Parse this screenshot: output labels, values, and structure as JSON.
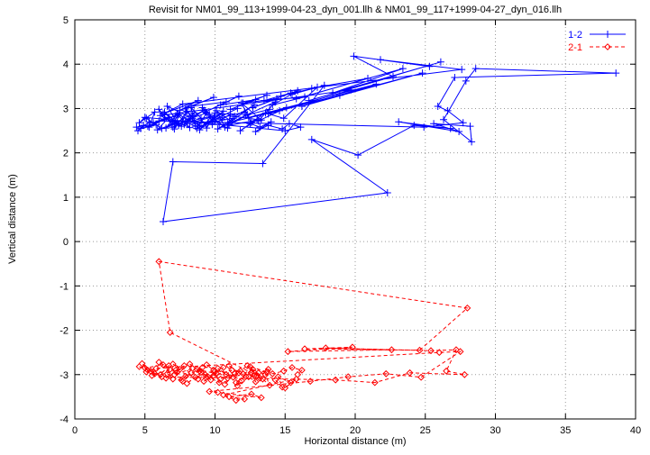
{
  "colors": {
    "background": "#ffffff",
    "axis": "#000000",
    "grid": "#9a9a9a",
    "series1": "#0000ff",
    "series2": "#ff0000"
  },
  "chart_data": {
    "type": "scatter",
    "title": "Revisit for NM01_99_113+1999-04-23_dyn_001.llh & NM01_99_117+1999-04-27_dyn_016.llh",
    "xlabel": "Horizontal distance (m)",
    "ylabel": "Vertical distance (m)",
    "xlim": [
      0,
      40
    ],
    "ylim": [
      -4,
      5
    ],
    "x_ticks": [
      0,
      5,
      10,
      15,
      20,
      25,
      30,
      35,
      40
    ],
    "y_ticks": [
      -4,
      -3,
      -2,
      -1,
      0,
      1,
      2,
      3,
      4,
      5
    ],
    "grid": true,
    "legend_position": "top-right",
    "series": [
      {
        "name": "1-2",
        "color": "#0000ff",
        "marker": "plus",
        "line_style": "solid",
        "points": [
          [
            4.4,
            2.58
          ],
          [
            4.9,
            2.62
          ],
          [
            4.5,
            2.5
          ],
          [
            5.3,
            2.7
          ],
          [
            4.7,
            2.55
          ],
          [
            5.8,
            2.63
          ],
          [
            5.1,
            2.78
          ],
          [
            6.2,
            2.55
          ],
          [
            5.6,
            2.68
          ],
          [
            6.7,
            2.8
          ],
          [
            5.9,
            2.52
          ],
          [
            7.1,
            2.66
          ],
          [
            6.4,
            2.92
          ],
          [
            7.6,
            2.6
          ],
          [
            6.9,
            2.74
          ],
          [
            8.2,
            2.57
          ],
          [
            7.3,
            2.88
          ],
          [
            8.6,
            2.66
          ],
          [
            7.9,
            2.99
          ],
          [
            8.9,
            2.61
          ],
          [
            8.1,
            2.76
          ],
          [
            9.4,
            2.9
          ],
          [
            8.7,
            2.55
          ],
          [
            9.8,
            2.72
          ],
          [
            9.1,
            3.02
          ],
          [
            10.3,
            2.64
          ],
          [
            9.6,
            2.86
          ],
          [
            10.7,
            2.58
          ],
          [
            10.1,
            2.95
          ],
          [
            11.2,
            2.7
          ],
          [
            14.6,
            2.95
          ],
          [
            18.9,
            3.3
          ],
          [
            12.4,
            2.8
          ],
          [
            21.5,
            3.55
          ],
          [
            16.2,
            3.05
          ],
          [
            24.8,
            3.8
          ],
          [
            13.8,
            2.88
          ],
          [
            19.7,
            3.42
          ],
          [
            6.1,
            2.84
          ],
          [
            7.4,
            2.62
          ],
          [
            6.6,
            3.05
          ],
          [
            8.4,
            2.78
          ],
          [
            7.0,
            2.58
          ],
          [
            9.2,
            2.96
          ],
          [
            8.0,
            2.7
          ],
          [
            10.5,
            2.88
          ],
          [
            9.0,
            2.6
          ],
          [
            11.6,
            3.0
          ],
          [
            10.0,
            2.76
          ],
          [
            12.1,
            2.92
          ],
          [
            10.9,
            2.66
          ],
          [
            12.8,
            3.08
          ],
          [
            11.4,
            2.82
          ],
          [
            13.3,
            2.74
          ],
          [
            11.9,
            3.12
          ],
          [
            12.6,
            2.68
          ],
          [
            13.9,
            2.98
          ],
          [
            12.2,
            2.85
          ],
          [
            14.3,
            3.15
          ],
          [
            13.1,
            2.72
          ],
          [
            15.1,
            3.02
          ],
          [
            13.6,
            2.9
          ],
          [
            14.9,
            2.78
          ],
          [
            17.3,
            3.48
          ],
          [
            20.9,
            3.68
          ],
          [
            15.8,
            3.22
          ],
          [
            23.4,
            3.9
          ],
          [
            18.4,
            3.35
          ],
          [
            26.1,
            4.05
          ],
          [
            16.7,
            3.18
          ],
          [
            22.7,
            3.72
          ],
          [
            19.9,
            4.18
          ],
          [
            25.3,
            3.95
          ],
          [
            21.8,
            4.1
          ],
          [
            27.6,
            3.88
          ],
          [
            7.7,
            3.1
          ],
          [
            6.3,
            2.88
          ],
          [
            8.8,
            3.18
          ],
          [
            7.5,
            2.96
          ],
          [
            9.9,
            3.25
          ],
          [
            8.3,
            3.05
          ],
          [
            10.8,
            3.15
          ],
          [
            9.3,
            2.92
          ],
          [
            11.7,
            3.28
          ],
          [
            10.4,
            3.08
          ],
          [
            12.9,
            3.2
          ],
          [
            11.1,
            2.98
          ],
          [
            13.7,
            3.3
          ],
          [
            12.0,
            3.12
          ],
          [
            14.4,
            3.22
          ],
          [
            12.7,
            3.02
          ],
          [
            15.4,
            3.35
          ],
          [
            13.5,
            3.18
          ],
          [
            16.4,
            3.26
          ],
          [
            14.1,
            3.08
          ],
          [
            15.9,
            3.4
          ],
          [
            14.7,
            3.28
          ],
          [
            16.9,
            3.45
          ],
          [
            15.5,
            3.32
          ],
          [
            17.8,
            3.52
          ],
          [
            13.4,
            1.76
          ],
          [
            7.0,
            1.8
          ],
          [
            6.3,
            0.45
          ],
          [
            22.3,
            1.1
          ],
          [
            16.9,
            2.3
          ],
          [
            20.2,
            1.95
          ],
          [
            24.2,
            2.62
          ],
          [
            26.8,
            2.55
          ],
          [
            23.1,
            2.7
          ],
          [
            27.4,
            2.48
          ],
          [
            25.6,
            2.66
          ],
          [
            28.2,
            2.6
          ],
          [
            28.3,
            2.25
          ],
          [
            26.3,
            2.75
          ],
          [
            27.9,
            3.62
          ],
          [
            28.6,
            3.9
          ],
          [
            38.6,
            3.8
          ],
          [
            27.1,
            3.7
          ],
          [
            25.9,
            3.05
          ],
          [
            26.6,
            2.95
          ],
          [
            27.7,
            2.68
          ],
          [
            24.9,
            2.58
          ],
          [
            6.0,
            2.72
          ],
          [
            5.2,
            2.6
          ],
          [
            7.2,
            2.84
          ],
          [
            6.5,
            2.56
          ],
          [
            8.5,
            2.9
          ],
          [
            7.8,
            2.64
          ],
          [
            9.7,
            2.8
          ],
          [
            8.9,
            2.52
          ],
          [
            10.6,
            2.94
          ],
          [
            9.5,
            2.68
          ],
          [
            11.3,
            2.78
          ],
          [
            10.2,
            2.54
          ],
          [
            12.3,
            2.86
          ],
          [
            11.0,
            2.62
          ],
          [
            13.0,
            2.74
          ],
          [
            11.8,
            2.5
          ],
          [
            12.5,
            2.66
          ],
          [
            13.2,
            2.58
          ],
          [
            14.0,
            2.7
          ],
          [
            12.9,
            2.48
          ],
          [
            13.8,
            2.62
          ],
          [
            14.8,
            2.54
          ],
          [
            15.3,
            2.66
          ],
          [
            16.1,
            2.58
          ],
          [
            15.0,
            2.5
          ],
          [
            5.0,
            2.8
          ],
          [
            4.6,
            2.68
          ],
          [
            5.7,
            2.92
          ],
          [
            5.3,
            2.58
          ],
          [
            6.4,
            2.76
          ],
          [
            6.0,
            2.98
          ],
          [
            6.9,
            2.64
          ],
          [
            7.4,
            2.86
          ],
          [
            7.1,
            2.54
          ],
          [
            8.0,
            2.94
          ],
          [
            7.7,
            2.72
          ],
          [
            8.6,
            2.6
          ],
          [
            8.3,
            3.02
          ],
          [
            9.0,
            2.78
          ],
          [
            9.4,
            2.56
          ],
          [
            10.0,
            2.9
          ],
          [
            9.8,
            2.64
          ],
          [
            10.5,
            2.76
          ],
          [
            11.1,
            2.88
          ],
          [
            10.9,
            2.56
          ]
        ]
      },
      {
        "name": "2-1",
        "color": "#ff0000",
        "marker": "diamond",
        "line_style": "dashed",
        "points": [
          [
            4.6,
            -2.82
          ],
          [
            5.2,
            -2.9
          ],
          [
            4.8,
            -2.75
          ],
          [
            5.7,
            -2.98
          ],
          [
            5.0,
            -2.85
          ],
          [
            6.3,
            -2.78
          ],
          [
            5.5,
            -3.02
          ],
          [
            6.8,
            -2.88
          ],
          [
            6.0,
            -2.72
          ],
          [
            7.3,
            -2.95
          ],
          [
            6.5,
            -3.08
          ],
          [
            7.8,
            -2.8
          ],
          [
            7.1,
            -3.0
          ],
          [
            8.4,
            -2.86
          ],
          [
            7.6,
            -3.12
          ],
          [
            8.9,
            -2.92
          ],
          [
            8.2,
            -2.76
          ],
          [
            9.5,
            -3.05
          ],
          [
            8.7,
            -2.88
          ],
          [
            10.1,
            -2.98
          ],
          [
            9.2,
            -3.15
          ],
          [
            10.6,
            -2.84
          ],
          [
            9.9,
            -3.02
          ],
          [
            11.2,
            -2.9
          ],
          [
            10.4,
            -3.1
          ],
          [
            11.7,
            -2.96
          ],
          [
            11.0,
            -2.8
          ],
          [
            12.2,
            -3.04
          ],
          [
            11.5,
            -3.18
          ],
          [
            12.7,
            -2.88
          ],
          [
            12.0,
            -2.98
          ],
          [
            13.2,
            -3.08
          ],
          [
            12.5,
            -2.82
          ],
          [
            13.7,
            -2.94
          ],
          [
            13.0,
            -3.02
          ],
          [
            6.8,
            -2.05
          ],
          [
            6.0,
            -0.45
          ],
          [
            28.0,
            -1.5
          ],
          [
            24.6,
            -2.45
          ],
          [
            16.4,
            -2.42
          ],
          [
            19.8,
            -2.38
          ],
          [
            15.2,
            -2.48
          ],
          [
            22.6,
            -2.44
          ],
          [
            17.9,
            -2.4
          ],
          [
            25.4,
            -2.46
          ],
          [
            27.2,
            -2.44
          ],
          [
            26.5,
            -2.92
          ],
          [
            27.8,
            -3.0
          ],
          [
            23.9,
            -2.96
          ],
          [
            21.4,
            -3.18
          ],
          [
            18.6,
            -3.12
          ],
          [
            6.2,
            -3.05
          ],
          [
            5.4,
            -2.92
          ],
          [
            7.0,
            -3.1
          ],
          [
            6.6,
            -2.98
          ],
          [
            7.7,
            -3.15
          ],
          [
            7.2,
            -2.9
          ],
          [
            8.6,
            -3.06
          ],
          [
            8.0,
            -3.2
          ],
          [
            9.0,
            -2.95
          ],
          [
            9.7,
            -3.12
          ],
          [
            9.3,
            -3.0
          ],
          [
            10.3,
            -3.18
          ],
          [
            10.0,
            -2.92
          ],
          [
            10.9,
            -3.08
          ],
          [
            10.7,
            -3.22
          ],
          [
            11.4,
            -2.98
          ],
          [
            11.9,
            -3.14
          ],
          [
            11.6,
            -3.25
          ],
          [
            12.4,
            -3.05
          ],
          [
            12.9,
            -3.16
          ],
          [
            12.6,
            -2.95
          ],
          [
            13.4,
            -3.1
          ],
          [
            13.9,
            -3.24
          ],
          [
            13.6,
            -3.0
          ],
          [
            14.3,
            -3.12
          ],
          [
            14.8,
            -3.28
          ],
          [
            14.5,
            -3.05
          ],
          [
            15.4,
            -3.18
          ],
          [
            15.0,
            -3.3
          ],
          [
            15.8,
            -3.1
          ],
          [
            10.6,
            -3.46
          ],
          [
            11.5,
            -3.58
          ],
          [
            12.1,
            -3.55
          ],
          [
            11.0,
            -3.5
          ],
          [
            12.6,
            -3.44
          ],
          [
            13.3,
            -3.52
          ],
          [
            10.2,
            -3.4
          ],
          [
            9.6,
            -3.38
          ],
          [
            16.8,
            -3.15
          ],
          [
            19.5,
            -3.05
          ],
          [
            22.2,
            -2.98
          ],
          [
            24.7,
            -3.06
          ],
          [
            27.5,
            -2.48
          ],
          [
            26.0,
            -2.5
          ],
          [
            5.8,
            -2.86
          ],
          [
            5.1,
            -2.94
          ],
          [
            6.7,
            -2.8
          ],
          [
            6.1,
            -3.0
          ],
          [
            7.5,
            -2.88
          ],
          [
            7.0,
            -2.76
          ],
          [
            8.3,
            -2.96
          ],
          [
            7.9,
            -3.04
          ],
          [
            9.1,
            -2.84
          ],
          [
            8.8,
            -3.1
          ],
          [
            9.9,
            -2.9
          ],
          [
            9.4,
            -2.78
          ],
          [
            10.8,
            -3.0
          ],
          [
            10.2,
            -2.86
          ],
          [
            11.3,
            -3.06
          ],
          [
            11.8,
            -2.92
          ],
          [
            12.3,
            -2.8
          ],
          [
            13.1,
            -2.96
          ],
          [
            12.8,
            -3.02
          ],
          [
            13.8,
            -2.88
          ],
          [
            14.1,
            -2.98
          ],
          [
            14.9,
            -2.92
          ],
          [
            15.5,
            -2.84
          ],
          [
            16.2,
            -2.9
          ],
          [
            15.9,
            -3.0
          ]
        ]
      }
    ]
  }
}
